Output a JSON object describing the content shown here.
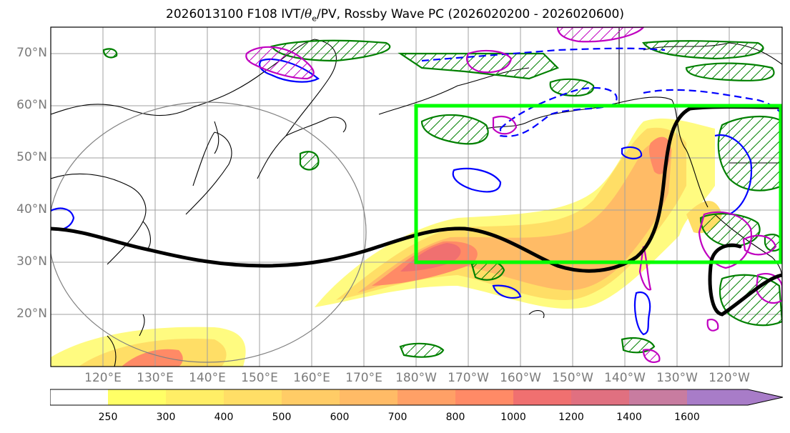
{
  "title": {
    "prefix": "2026013100 F108 IVT/",
    "theta": "θ",
    "theta_sub": "e",
    "suffix": "/PV, Rossby Wave PC (2026020200 - 2026020600)"
  },
  "lat_labels": [
    "70°N",
    "60°N",
    "50°N",
    "40°N",
    "30°N",
    "20°N"
  ],
  "lon_labels": [
    "120°E",
    "130°E",
    "140°E",
    "150°E",
    "160°E",
    "170°E",
    "180°W",
    "170°W",
    "160°W",
    "150°W",
    "140°W",
    "130°W",
    "120°W"
  ],
  "colorbar": {
    "ticks": [
      "250",
      "300",
      "400",
      "500",
      "600",
      "700",
      "800",
      "1000",
      "1200",
      "1400",
      "1600"
    ],
    "colors": [
      "#ffff66",
      "#ffee66",
      "#ffde66",
      "#ffcc66",
      "#ffbb66",
      "#ffa066",
      "#ff8a66",
      "#f07070",
      "#e07080",
      "#c87ca0",
      "#a87cc8"
    ]
  },
  "colors": {
    "pv_box": "#00ff00",
    "wave_line": "#000000",
    "positive_contour": "#008000",
    "negative_contour": "#0000ff",
    "magenta_contour": "#c000c0"
  }
}
